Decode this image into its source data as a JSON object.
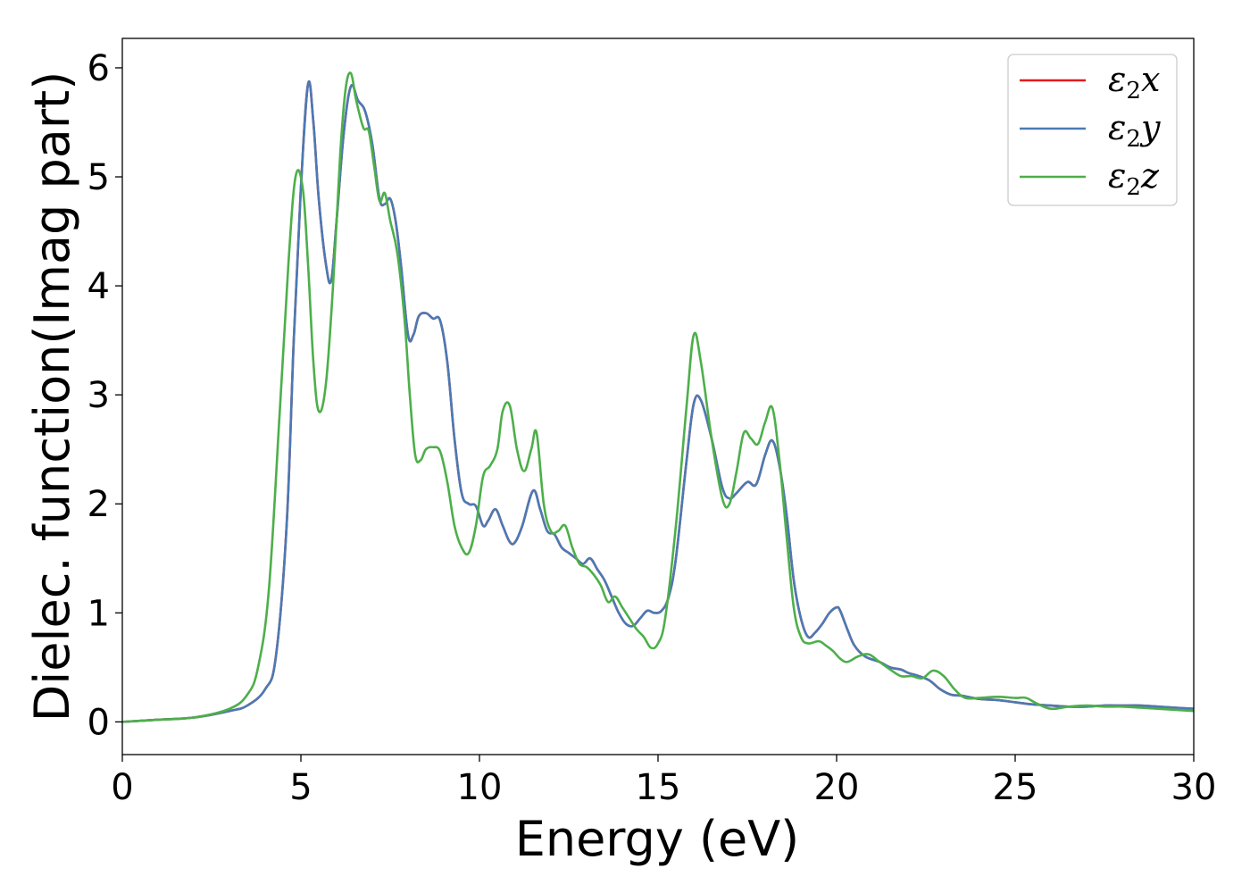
{
  "chart_data": {
    "type": "line",
    "title": "",
    "xlabel": "Energy (eV)",
    "ylabel": "Dielec. function(Imag part)",
    "xlim": [
      0,
      30
    ],
    "ylim": [
      -0.3,
      6.27
    ],
    "xticks": [
      0,
      5,
      10,
      15,
      20,
      25,
      30
    ],
    "yticks": [
      0,
      1,
      2,
      3,
      4,
      5,
      6
    ],
    "grid": false,
    "legend_position": "top-right",
    "series": [
      {
        "name": "ε2x",
        "legend_symbol": "ε",
        "legend_sub": "2",
        "legend_var": "x",
        "color": "#e41a1c",
        "x": [
          0,
          1,
          2,
          3,
          3.5,
          4,
          4.3,
          4.6,
          4.8,
          5.0,
          5.2,
          5.35,
          5.5,
          5.7,
          5.85,
          6.0,
          6.2,
          6.4,
          6.6,
          6.8,
          7.0,
          7.2,
          7.35,
          7.5,
          7.65,
          7.8,
          8.0,
          8.15,
          8.3,
          8.5,
          8.7,
          8.9,
          9.1,
          9.3,
          9.5,
          9.7,
          9.9,
          10.1,
          10.25,
          10.45,
          10.65,
          10.85,
          11.0,
          11.2,
          11.5,
          11.7,
          11.9,
          12.1,
          12.3,
          12.5,
          12.7,
          12.9,
          13.1,
          13.3,
          13.5,
          13.7,
          13.9,
          14.1,
          14.3,
          14.5,
          14.7,
          14.9,
          15.1,
          15.3,
          15.5,
          15.8,
          16.0,
          16.2,
          16.5,
          16.8,
          17.0,
          17.2,
          17.5,
          17.75,
          18.0,
          18.2,
          18.4,
          18.6,
          18.8,
          19.0,
          19.2,
          19.4,
          19.6,
          19.8,
          20.0,
          20.1,
          20.3,
          20.5,
          20.8,
          21.2,
          21.5,
          21.8,
          22.0,
          22.3,
          22.6,
          22.9,
          23.2,
          23.5,
          24.0,
          24.5,
          25.0,
          25.5,
          26.0,
          26.5,
          27.0,
          27.5,
          28.0,
          28.5,
          29.0,
          29.5,
          30.0
        ],
        "y": [
          0.0,
          0.02,
          0.04,
          0.1,
          0.15,
          0.3,
          0.6,
          1.8,
          3.5,
          4.9,
          5.85,
          5.5,
          4.8,
          4.2,
          4.05,
          4.6,
          5.4,
          5.83,
          5.7,
          5.6,
          5.3,
          4.8,
          4.75,
          4.8,
          4.6,
          4.2,
          3.55,
          3.55,
          3.72,
          3.75,
          3.7,
          3.68,
          3.3,
          2.6,
          2.1,
          2.0,
          1.98,
          1.8,
          1.85,
          1.95,
          1.8,
          1.65,
          1.65,
          1.8,
          2.12,
          1.95,
          1.75,
          1.72,
          1.6,
          1.55,
          1.5,
          1.45,
          1.5,
          1.4,
          1.3,
          1.15,
          1.0,
          0.9,
          0.88,
          0.95,
          1.02,
          1.0,
          1.02,
          1.15,
          1.5,
          2.4,
          2.92,
          2.95,
          2.6,
          2.15,
          2.05,
          2.1,
          2.2,
          2.18,
          2.45,
          2.58,
          2.35,
          1.9,
          1.3,
          0.95,
          0.78,
          0.82,
          0.9,
          1.0,
          1.05,
          1.02,
          0.85,
          0.7,
          0.6,
          0.55,
          0.5,
          0.48,
          0.45,
          0.42,
          0.38,
          0.3,
          0.25,
          0.24,
          0.21,
          0.2,
          0.18,
          0.16,
          0.15,
          0.14,
          0.14,
          0.15,
          0.15,
          0.15,
          0.14,
          0.13,
          0.12
        ]
      },
      {
        "name": "ε2y",
        "legend_symbol": "ε",
        "legend_sub": "2",
        "legend_var": "y",
        "color": "#4a7ab5",
        "x": [
          0,
          1,
          2,
          3,
          3.5,
          4,
          4.3,
          4.6,
          4.8,
          5.0,
          5.2,
          5.35,
          5.5,
          5.7,
          5.85,
          6.0,
          6.2,
          6.4,
          6.6,
          6.8,
          7.0,
          7.2,
          7.35,
          7.5,
          7.65,
          7.8,
          8.0,
          8.15,
          8.3,
          8.5,
          8.7,
          8.9,
          9.1,
          9.3,
          9.5,
          9.7,
          9.9,
          10.1,
          10.25,
          10.45,
          10.65,
          10.85,
          11.0,
          11.2,
          11.5,
          11.7,
          11.9,
          12.1,
          12.3,
          12.5,
          12.7,
          12.9,
          13.1,
          13.3,
          13.5,
          13.7,
          13.9,
          14.1,
          14.3,
          14.5,
          14.7,
          14.9,
          15.1,
          15.3,
          15.5,
          15.8,
          16.0,
          16.2,
          16.5,
          16.8,
          17.0,
          17.2,
          17.5,
          17.75,
          18.0,
          18.2,
          18.4,
          18.6,
          18.8,
          19.0,
          19.2,
          19.4,
          19.6,
          19.8,
          20.0,
          20.1,
          20.3,
          20.5,
          20.8,
          21.2,
          21.5,
          21.8,
          22.0,
          22.3,
          22.6,
          22.9,
          23.2,
          23.5,
          24.0,
          24.5,
          25.0,
          25.5,
          26.0,
          26.5,
          27.0,
          27.5,
          28.0,
          28.5,
          29.0,
          29.5,
          30.0
        ],
        "y": [
          0.0,
          0.02,
          0.04,
          0.1,
          0.15,
          0.3,
          0.6,
          1.8,
          3.5,
          4.9,
          5.85,
          5.5,
          4.8,
          4.2,
          4.05,
          4.6,
          5.4,
          5.83,
          5.7,
          5.6,
          5.3,
          4.8,
          4.75,
          4.8,
          4.6,
          4.2,
          3.55,
          3.55,
          3.72,
          3.75,
          3.7,
          3.68,
          3.3,
          2.6,
          2.1,
          2.0,
          1.98,
          1.8,
          1.85,
          1.95,
          1.8,
          1.65,
          1.65,
          1.8,
          2.12,
          1.95,
          1.75,
          1.72,
          1.6,
          1.55,
          1.5,
          1.45,
          1.5,
          1.4,
          1.3,
          1.15,
          1.0,
          0.9,
          0.88,
          0.95,
          1.02,
          1.0,
          1.02,
          1.15,
          1.5,
          2.4,
          2.92,
          2.95,
          2.6,
          2.15,
          2.05,
          2.1,
          2.2,
          2.18,
          2.45,
          2.58,
          2.35,
          1.9,
          1.3,
          0.95,
          0.78,
          0.82,
          0.9,
          1.0,
          1.05,
          1.02,
          0.85,
          0.7,
          0.6,
          0.55,
          0.5,
          0.48,
          0.45,
          0.42,
          0.38,
          0.3,
          0.25,
          0.24,
          0.21,
          0.2,
          0.18,
          0.16,
          0.15,
          0.14,
          0.14,
          0.15,
          0.15,
          0.15,
          0.14,
          0.13,
          0.12
        ]
      },
      {
        "name": "ε2z",
        "legend_symbol": "ε",
        "legend_sub": "2",
        "legend_var": "z",
        "color": "#4daf4a",
        "x": [
          0,
          1,
          2,
          3,
          3.5,
          3.8,
          4.1,
          4.4,
          4.65,
          4.85,
          5.05,
          5.2,
          5.35,
          5.5,
          5.7,
          5.9,
          6.1,
          6.25,
          6.4,
          6.55,
          6.75,
          6.9,
          7.05,
          7.2,
          7.35,
          7.5,
          7.7,
          7.9,
          8.05,
          8.2,
          8.35,
          8.5,
          8.7,
          8.9,
          9.1,
          9.3,
          9.5,
          9.7,
          9.9,
          10.1,
          10.3,
          10.5,
          10.65,
          10.85,
          11.05,
          11.25,
          11.45,
          11.6,
          11.8,
          12.0,
          12.2,
          12.4,
          12.6,
          12.8,
          13.0,
          13.2,
          13.4,
          13.6,
          13.8,
          14.0,
          14.2,
          14.4,
          14.6,
          14.8,
          15.0,
          15.2,
          15.5,
          15.8,
          16.0,
          16.2,
          16.5,
          16.8,
          17.0,
          17.2,
          17.4,
          17.6,
          17.8,
          18.0,
          18.2,
          18.4,
          18.6,
          18.8,
          19.0,
          19.2,
          19.5,
          19.7,
          19.9,
          20.1,
          20.3,
          20.6,
          20.9,
          21.2,
          21.5,
          21.8,
          22.1,
          22.4,
          22.7,
          23.0,
          23.3,
          23.6,
          24.0,
          24.5,
          25.0,
          25.3,
          25.6,
          26.0,
          26.5,
          27.0,
          27.5,
          28.0,
          28.5,
          29.0,
          29.5,
          30.0
        ],
        "y": [
          0.0,
          0.02,
          0.04,
          0.12,
          0.25,
          0.5,
          1.2,
          2.8,
          4.2,
          5.0,
          4.9,
          4.2,
          3.3,
          2.85,
          3.1,
          4.0,
          5.2,
          5.8,
          5.95,
          5.7,
          5.45,
          5.42,
          5.1,
          4.78,
          4.85,
          4.6,
          4.3,
          3.7,
          3.0,
          2.45,
          2.4,
          2.5,
          2.52,
          2.48,
          2.2,
          1.8,
          1.6,
          1.55,
          1.8,
          2.25,
          2.35,
          2.5,
          2.85,
          2.9,
          2.5,
          2.3,
          2.5,
          2.65,
          2.0,
          1.75,
          1.75,
          1.8,
          1.6,
          1.45,
          1.42,
          1.35,
          1.25,
          1.1,
          1.15,
          1.05,
          0.95,
          0.85,
          0.78,
          0.68,
          0.72,
          0.95,
          1.8,
          2.9,
          3.55,
          3.3,
          2.6,
          2.05,
          2.0,
          2.3,
          2.65,
          2.6,
          2.55,
          2.75,
          2.88,
          2.4,
          1.7,
          1.05,
          0.78,
          0.72,
          0.74,
          0.7,
          0.65,
          0.58,
          0.55,
          0.6,
          0.62,
          0.55,
          0.48,
          0.42,
          0.42,
          0.4,
          0.47,
          0.42,
          0.3,
          0.22,
          0.22,
          0.23,
          0.22,
          0.22,
          0.17,
          0.12,
          0.14,
          0.15,
          0.14,
          0.14,
          0.13,
          0.12,
          0.11,
          0.1
        ]
      }
    ]
  }
}
